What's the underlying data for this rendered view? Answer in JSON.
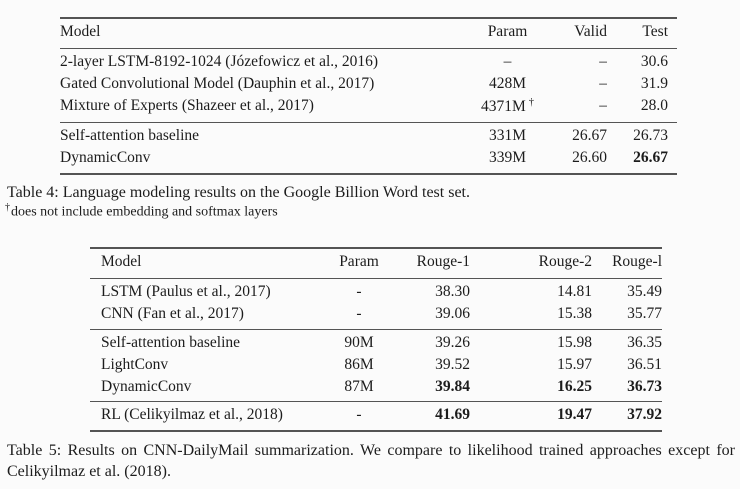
{
  "page": {
    "background": "#fbfbfb",
    "text_color": "#1c1c1c",
    "rule_color": "#545454"
  },
  "table4": {
    "columns": [
      "Model",
      "Param",
      "Valid",
      "Test"
    ],
    "col_keys": [
      "model",
      "param",
      "valid",
      "test"
    ],
    "align": [
      "left",
      "center",
      "right",
      "right"
    ],
    "groups": [
      {
        "rows": [
          {
            "cells": [
              "2-layer LSTM-8192-1024 (Józefowicz et al., 2016)",
              "–",
              "–",
              "30.6"
            ]
          },
          {
            "cells": [
              "Gated Convolutional Model (Dauphin et al., 2017)",
              "428M",
              "–",
              "31.9"
            ]
          },
          {
            "cells": [
              "Mixture of Experts (Shazeer et al., 2017)",
              "4371M",
              "–",
              "28.0"
            ],
            "sup": {
              "1": "†"
            }
          }
        ]
      },
      {
        "rows": [
          {
            "cells": [
              "Self-attention baseline",
              "331M",
              "26.67",
              "26.73"
            ]
          },
          {
            "cells": [
              "DynamicConv",
              "339M",
              "26.60",
              "26.67"
            ],
            "bold": [
              3
            ]
          }
        ]
      }
    ],
    "caption": "Table 4: Language modeling results on the Google Billion Word test set.",
    "footnote_symbol": "†",
    "footnote_text": "does not include embedding and softmax layers"
  },
  "table5": {
    "columns": [
      "Model",
      "Param",
      "Rouge-1",
      "Rouge-2",
      "Rouge-l"
    ],
    "col_keys": [
      "model",
      "param",
      "rouge-1",
      "rouge-2",
      "rouge-l"
    ],
    "align": [
      "left",
      "center",
      "right",
      "right",
      "right"
    ],
    "groups": [
      {
        "rows": [
          {
            "cells": [
              "LSTM (Paulus et al., 2017)",
              "-",
              "38.30",
              "14.81",
              "35.49"
            ]
          },
          {
            "cells": [
              "CNN (Fan et al., 2017)",
              "-",
              "39.06",
              "15.38",
              "35.77"
            ]
          }
        ]
      },
      {
        "rows": [
          {
            "cells": [
              "Self-attention baseline",
              "90M",
              "39.26",
              "15.98",
              "36.35"
            ]
          },
          {
            "cells": [
              "LightConv",
              "86M",
              "39.52",
              "15.97",
              "36.51"
            ]
          },
          {
            "cells": [
              "DynamicConv",
              "87M",
              "39.84",
              "16.25",
              "36.73"
            ],
            "bold": [
              2,
              3,
              4
            ]
          }
        ]
      },
      {
        "rows": [
          {
            "cells": [
              "RL (Celikyilmaz et al., 2018)",
              "-",
              "41.69",
              "19.47",
              "37.92"
            ],
            "bold": [
              2,
              3,
              4
            ]
          }
        ]
      }
    ],
    "caption": "Table 5: Results on CNN-DailyMail summarization. We compare to likelihood trained approaches except for Celikyilmaz et al. (2018)."
  }
}
